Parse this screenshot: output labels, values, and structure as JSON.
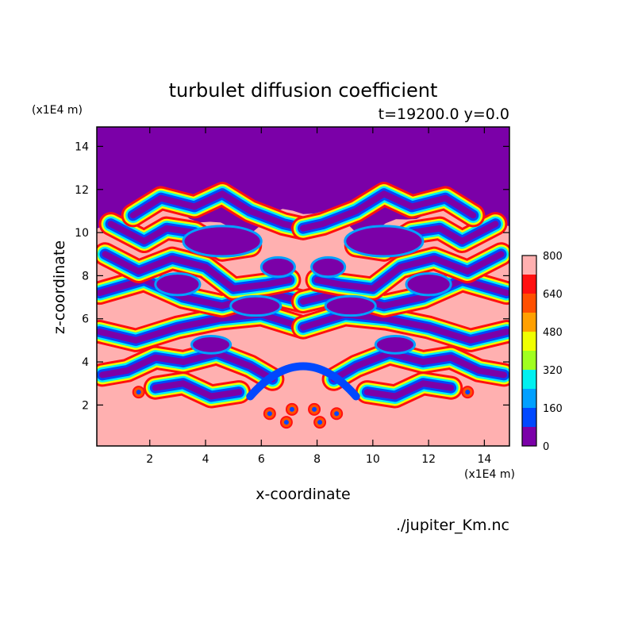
{
  "chart_data": {
    "type": "heatmap",
    "title": "turbulet diffusion coefficient",
    "subtitle": "t=19200.0 y=0.0",
    "xlabel": "x-coordinate",
    "ylabel": "z-coordinate",
    "x_unit": "(x1E4 m)",
    "y_unit": "(x1E4 m)",
    "source_file": "./jupiter_Km.nc",
    "xlim": [
      0.1,
      14.9
    ],
    "ylim": [
      0.1,
      14.9
    ],
    "x_ticks": [
      2,
      4,
      6,
      8,
      10,
      12,
      14
    ],
    "y_ticks": [
      2,
      4,
      6,
      8,
      10,
      12,
      14
    ],
    "colorbar": {
      "ticks": [
        0,
        160,
        320,
        480,
        640,
        800
      ],
      "levels": [
        0,
        80,
        160,
        240,
        320,
        400,
        480,
        560,
        640,
        720,
        800
      ],
      "colors": [
        "#7b00a8",
        "#1a00c8",
        "#0048ff",
        "#00a0ff",
        "#00f0f0",
        "#a0ff20",
        "#f0ff00",
        "#ffa000",
        "#ff5000",
        "#ff1010",
        "#ffb0b0"
      ]
    },
    "field_description_values": {
      "top_region_z_above_12": 0,
      "bottom_region_z_below_3": 800,
      "symmetric_about_x": 7.5
    }
  }
}
